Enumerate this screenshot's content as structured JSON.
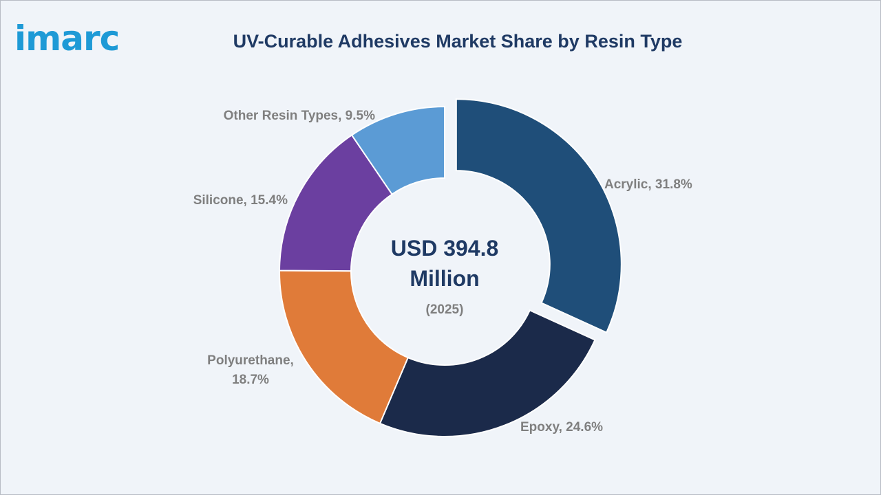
{
  "brand": {
    "logo_text": "imarc"
  },
  "chart_data": {
    "type": "pie",
    "title": "UV-Curable Adhesives Market Share by Resin Type",
    "center": {
      "value_line1": "USD 394.8",
      "value_line2": "Million",
      "year": "(2025)"
    },
    "slices": [
      {
        "label": "Acrylic, 31.8%",
        "value": 31.8,
        "color": "#1f4e79",
        "exploded": true
      },
      {
        "label": "Epoxy, 24.6%",
        "value": 24.6,
        "color": "#1b2a4a"
      },
      {
        "label": "Polyurethane, 18.7%",
        "label_lines": [
          "Polyurethane,",
          "18.7%"
        ],
        "value": 18.7,
        "color": "#e07b39"
      },
      {
        "label": "Silicone, 15.4%",
        "value": 15.4,
        "color": "#6b3fa0"
      },
      {
        "label": "Other Resin Types, 9.5%",
        "value": 9.5,
        "color": "#5b9bd5"
      }
    ]
  }
}
